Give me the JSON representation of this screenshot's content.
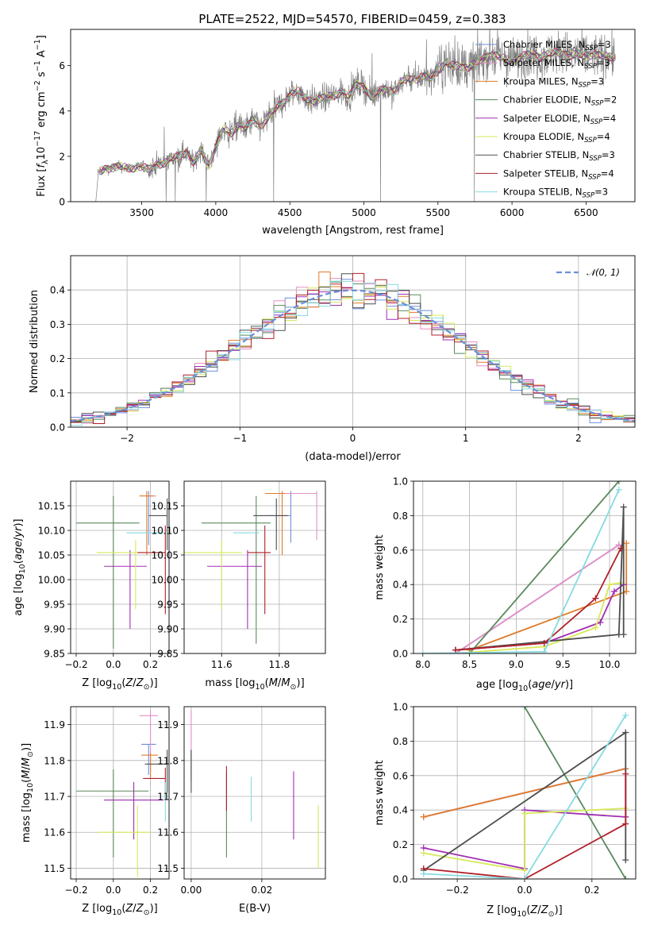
{
  "figure_title": "PLATE=2522, MJD=54570, FIBERID=0459, z=0.383",
  "colors": {
    "Chabrier MILES": "#6f8fdc",
    "Salpeter MILES": "#e58fc6",
    "Kroupa MILES": "#e07b2a",
    "Chabrier ELODIE": "#5a8a5e",
    "Salpeter ELODIE": "#a12db3",
    "Kroupa ELODIE": "#d8e85a",
    "Chabrier STELIB": "#4d4d4d",
    "Salpeter STELIB": "#b0202a",
    "Kroupa STELIB": "#86dbe0",
    "data": "#808080",
    "normal": "#6a8fd6"
  },
  "chart_data": [
    {
      "id": "spectrum",
      "type": "line",
      "xlabel": "wavelength [Angstrom, rest frame]",
      "ylabel_parts": [
        "Flux [",
        "f",
        "λ",
        "10",
        "−17",
        " erg cm",
        "−2",
        " s",
        "−1",
        " A",
        "−1",
        "]"
      ],
      "xlim": [
        3020,
        6830
      ],
      "ylim": [
        0,
        7.6
      ],
      "xticks": [
        3500,
        4000,
        4500,
        5000,
        5500,
        6000,
        6500
      ],
      "yticks": [
        0,
        2,
        4,
        6
      ],
      "grid": false,
      "legend_position": "right",
      "legend": [
        {
          "name": "Chabrier MILES, N",
          "sub": "SSP",
          "suffix": "=3"
        },
        {
          "name": "Salpeter MILES, N",
          "sub": "SSP",
          "suffix": "=3"
        },
        {
          "name": "Kroupa MILES, N",
          "sub": "SSP",
          "suffix": "=3"
        },
        {
          "name": "Chabrier ELODIE, N",
          "sub": "SSP",
          "suffix": "=2"
        },
        {
          "name": "Salpeter ELODIE, N",
          "sub": "SSP",
          "suffix": "=4"
        },
        {
          "name": "Kroupa ELODIE, N",
          "sub": "SSP",
          "suffix": "=4"
        },
        {
          "name": "Chabrier STELIB, N",
          "sub": "SSP",
          "suffix": "=3"
        },
        {
          "name": "Salpeter STELIB, N",
          "sub": "SSP",
          "suffix": "=4"
        },
        {
          "name": "Kroupa STELIB, N",
          "sub": "SSP",
          "suffix": "=3"
        }
      ],
      "continuum": {
        "x": [
          3210,
          3250,
          3300,
          3350,
          3400,
          3450,
          3500,
          3550,
          3600,
          3650,
          3700,
          3750,
          3800,
          3850,
          3900,
          3950,
          4000,
          4050,
          4100,
          4150,
          4200,
          4250,
          4300,
          4350,
          4400,
          4450,
          4500,
          4550,
          4600,
          4650,
          4700,
          4750,
          4800,
          4850,
          4900,
          4950,
          5000,
          5050,
          5100,
          5150,
          5200,
          5250,
          5300,
          5350,
          5400,
          5450,
          5500,
          5550,
          5600,
          5650,
          5700,
          5750,
          5800,
          5850,
          5900,
          5950,
          6000,
          6050,
          6100,
          6150,
          6200,
          6250,
          6300,
          6350,
          6400,
          6450,
          6500,
          6550,
          6600,
          6650
        ],
        "y": [
          1.3,
          1.45,
          1.5,
          1.55,
          1.48,
          1.5,
          1.55,
          1.4,
          1.65,
          1.7,
          1.9,
          2.0,
          2.2,
          1.7,
          2.3,
          1.6,
          2.4,
          3.2,
          3.0,
          3.4,
          3.2,
          3.6,
          3.3,
          3.7,
          4.1,
          4.35,
          4.7,
          4.9,
          4.6,
          4.45,
          4.5,
          4.6,
          4.7,
          4.85,
          4.6,
          5.2,
          5.1,
          4.6,
          4.9,
          5.0,
          4.8,
          5.25,
          5.5,
          5.4,
          5.5,
          5.45,
          5.8,
          6.1,
          6.0,
          6.0,
          5.9,
          6.1,
          6.3,
          6.5,
          6.4,
          6.3,
          6.2,
          6.4,
          6.45,
          6.5,
          6.4,
          6.5,
          6.6,
          6.55,
          6.45,
          6.5,
          6.45,
          6.5,
          6.4,
          6.4
        ]
      }
    },
    {
      "id": "residuals",
      "type": "histogram",
      "xlabel": "(data-model)/error",
      "ylabel": "Normed distribution",
      "xlim": [
        -2.5,
        2.5
      ],
      "ylim": [
        0,
        0.5
      ],
      "xticks": [
        -2,
        -1,
        0,
        1,
        2
      ],
      "yticks": [
        0.0,
        0.1,
        0.2,
        0.3,
        0.4
      ],
      "grid": true,
      "legend_position": "top-right",
      "legend": [
        "𝒩(0, 1)"
      ],
      "bin_width": 0.1
    },
    {
      "id": "age_vs_Z",
      "type": "errorbar",
      "xlabel": "Z [log10(Z/Z⊙)]",
      "ylabel": "age  [log10(age/yr)]",
      "xlim": [
        -0.23,
        0.3
      ],
      "ylim": [
        9.85,
        10.2
      ],
      "xticks": [
        -0.2,
        0.0,
        0.2
      ],
      "yticks": [
        9.85,
        9.9,
        9.95,
        10.0,
        10.05,
        10.1,
        10.15
      ],
      "grid": true,
      "points": [
        {
          "model": "Chabrier MILES",
          "x": 0.19,
          "xlo": 0.19,
          "xhi": 0.19,
          "y": 10.13,
          "ylo": 10.07,
          "yhi": 10.18
        },
        {
          "model": "Salpeter MILES",
          "x": 0.18,
          "xlo": 0.17,
          "xhi": 0.23,
          "y": 10.17,
          "ylo": 10.17,
          "yhi": 10.17
        },
        {
          "model": "Kroupa MILES",
          "x": 0.18,
          "xlo": 0.14,
          "xhi": 0.22,
          "y": 10.17,
          "ylo": 10.05,
          "yhi": 10.18
        },
        {
          "model": "Chabrier ELODIE",
          "x": 0.0,
          "xlo": -0.2,
          "xhi": 0.14,
          "y": 10.115,
          "ylo": 9.86,
          "yhi": 10.17
        },
        {
          "model": "Salpeter ELODIE",
          "x": 0.09,
          "xlo": -0.05,
          "xhi": 0.18,
          "y": 10.027,
          "ylo": 9.9,
          "yhi": 10.06
        },
        {
          "model": "Kroupa ELODIE",
          "x": 0.12,
          "xlo": -0.09,
          "xhi": 0.18,
          "y": 10.055,
          "ylo": 9.94,
          "yhi": 10.08
        },
        {
          "model": "Chabrier STELIB",
          "x": 0.29,
          "xlo": 0.19,
          "xhi": 0.29,
          "y": 10.13,
          "ylo": 10.06,
          "yhi": 10.165
        },
        {
          "model": "Salpeter STELIB",
          "x": 0.28,
          "xlo": 0.13,
          "xhi": 0.28,
          "y": 10.055,
          "ylo": 9.93,
          "yhi": 10.11
        },
        {
          "model": "Kroupa STELIB",
          "x": 0.16,
          "xlo": 0.07,
          "xhi": 0.28,
          "y": 10.095,
          "ylo": 10.095,
          "yhi": 10.095
        }
      ]
    },
    {
      "id": "age_vs_mass",
      "type": "errorbar",
      "xlabel": "mass [log10(M/M⊙)]",
      "ylabel": "",
      "xlim": [
        11.47,
        11.96
      ],
      "ylim": [
        9.85,
        10.2
      ],
      "xticks": [
        11.6,
        11.8
      ],
      "yticks": [
        9.85,
        9.9,
        9.95,
        10.0,
        10.05,
        10.1,
        10.15
      ],
      "grid": true,
      "points": [
        {
          "model": "Chabrier MILES",
          "x": 11.84,
          "xlo": 11.76,
          "xhi": 11.84,
          "y": 10.13,
          "ylo": 10.075,
          "yhi": 10.18
        },
        {
          "model": "Salpeter MILES",
          "x": 11.93,
          "xlo": 11.77,
          "xhi": 11.93,
          "y": 10.175,
          "ylo": 10.08,
          "yhi": 10.18
        },
        {
          "model": "Kroupa MILES",
          "x": 11.81,
          "xlo": 11.75,
          "xhi": 11.82,
          "y": 10.175,
          "ylo": 10.05,
          "yhi": 10.18
        },
        {
          "model": "Chabrier ELODIE",
          "x": 11.72,
          "xlo": 11.53,
          "xhi": 11.77,
          "y": 10.115,
          "ylo": 9.87,
          "yhi": 10.17
        },
        {
          "model": "Salpeter ELODIE",
          "x": 11.69,
          "xlo": 11.55,
          "xhi": 11.74,
          "y": 10.027,
          "ylo": 9.9,
          "yhi": 10.06
        },
        {
          "model": "Kroupa ELODIE",
          "x": 11.6,
          "xlo": 11.47,
          "xhi": 11.67,
          "y": 10.055,
          "ylo": 9.94,
          "yhi": 10.08
        },
        {
          "model": "Chabrier STELIB",
          "x": 11.79,
          "xlo": 11.71,
          "xhi": 11.83,
          "y": 10.13,
          "ylo": 10.06,
          "yhi": 10.165
        },
        {
          "model": "Salpeter STELIB",
          "x": 11.75,
          "xlo": 11.69,
          "xhi": 11.77,
          "y": 10.055,
          "ylo": 9.93,
          "yhi": 10.11
        },
        {
          "model": "Kroupa STELIB",
          "x": 11.66,
          "xlo": 11.64,
          "xhi": 11.73,
          "y": 10.095,
          "ylo": 10.095,
          "yhi": 10.095
        }
      ]
    },
    {
      "id": "weight_vs_age",
      "type": "line",
      "xlabel": "age  [log10(age/yr)]",
      "ylabel": "mass weight",
      "xlim": [
        7.9,
        10.28
      ],
      "ylim": [
        0,
        1.0
      ],
      "xticks": [
        8.0,
        8.5,
        9.0,
        9.5,
        10.0
      ],
      "yticks": [
        0.0,
        0.2,
        0.4,
        0.6,
        0.8,
        1.0
      ],
      "grid": true,
      "series": [
        {
          "model": "Chabrier MILES",
          "x": [
            8.35,
            10.1
          ],
          "y": [
            0.0,
            0.63
          ]
        },
        {
          "model": "Salpeter MILES",
          "x": [
            8.35,
            10.1
          ],
          "y": [
            0.0,
            0.63
          ]
        },
        {
          "model": "Kroupa MILES",
          "x": [
            8.5,
            10.18,
            10.18
          ],
          "y": [
            0.02,
            0.36,
            0.64
          ]
        },
        {
          "model": "Chabrier ELODIE",
          "x": [
            8.5,
            10.1
          ],
          "y": [
            0.0,
            1.0
          ]
        },
        {
          "model": "Salpeter ELODIE",
          "x": [
            8.35,
            9.3,
            9.9,
            10.05,
            10.15
          ],
          "y": [
            0.02,
            0.06,
            0.18,
            0.36,
            0.4
          ]
        },
        {
          "model": "Kroupa ELODIE",
          "x": [
            8.35,
            9.3,
            9.85,
            10.0,
            10.12
          ],
          "y": [
            0.0,
            0.04,
            0.15,
            0.4,
            0.41
          ]
        },
        {
          "model": "Chabrier STELIB",
          "x": [
            8.35,
            10.1,
            10.15,
            10.15
          ],
          "y": [
            0.02,
            0.11,
            0.85,
            0.11
          ]
        },
        {
          "model": "Salpeter STELIB",
          "x": [
            8.35,
            9.3,
            9.85,
            10.12
          ],
          "y": [
            0.02,
            0.06,
            0.32,
            0.61
          ]
        },
        {
          "model": "Kroupa STELIB",
          "x": [
            8.0,
            9.3,
            10.1
          ],
          "y": [
            0.0,
            0.01,
            0.95
          ]
        }
      ]
    },
    {
      "id": "mass_vs_Z",
      "type": "errorbar",
      "xlabel": "Z [log10(Z/Z⊙)]",
      "ylabel": "mass [log10(M/M⊙)]",
      "xlim": [
        -0.23,
        0.3
      ],
      "ylim": [
        11.47,
        11.95
      ],
      "xticks": [
        -0.2,
        0.0,
        0.2
      ],
      "yticks": [
        11.5,
        11.6,
        11.7,
        11.8,
        11.9
      ],
      "grid": true,
      "points": [
        {
          "model": "Chabrier MILES",
          "x": 0.19,
          "xlo": 0.15,
          "xhi": 0.23,
          "y": 11.845,
          "ylo": 11.76,
          "yhi": 11.845
        },
        {
          "model": "Salpeter MILES",
          "x": 0.2,
          "xlo": 0.14,
          "xhi": 0.24,
          "y": 11.925,
          "ylo": 11.77,
          "yhi": 11.94
        },
        {
          "model": "Kroupa MILES",
          "x": 0.2,
          "xlo": 0.15,
          "xhi": 0.24,
          "y": 11.815,
          "ylo": 11.75,
          "yhi": 11.82
        },
        {
          "model": "Chabrier ELODIE",
          "x": 0.0,
          "xlo": -0.2,
          "xhi": 0.19,
          "y": 11.715,
          "ylo": 11.53,
          "yhi": 11.775
        },
        {
          "model": "Salpeter ELODIE",
          "x": 0.11,
          "xlo": -0.05,
          "xhi": 0.27,
          "y": 11.69,
          "ylo": 11.58,
          "yhi": 11.74
        },
        {
          "model": "Kroupa ELODIE",
          "x": 0.13,
          "xlo": -0.08,
          "xhi": 0.2,
          "y": 11.6,
          "ylo": 11.475,
          "yhi": 11.675
        },
        {
          "model": "Chabrier STELIB",
          "x": 0.29,
          "xlo": 0.17,
          "xhi": 0.29,
          "y": 11.79,
          "ylo": 11.71,
          "yhi": 11.83
        },
        {
          "model": "Salpeter STELIB",
          "x": 0.28,
          "xlo": 0.16,
          "xhi": 0.28,
          "y": 11.75,
          "ylo": 11.69,
          "yhi": 11.78
        },
        {
          "model": "Kroupa STELIB",
          "x": 0.28,
          "xlo": 0.27,
          "xhi": 0.29,
          "y": 11.7,
          "ylo": 11.63,
          "yhi": 11.74
        }
      ]
    },
    {
      "id": "mass_vs_ebv",
      "type": "errorbar",
      "xlabel": "E(B-V)",
      "ylabel": "",
      "xlim": [
        -0.002,
        0.038
      ],
      "ylim": [
        11.47,
        11.95
      ],
      "xticks": [
        0.0,
        0.02
      ],
      "yticks": [
        11.5,
        11.6,
        11.7,
        11.8,
        11.9
      ],
      "grid": true,
      "points": [
        {
          "model": "Chabrier MILES",
          "x": 0.0,
          "xlo": 0.0,
          "xhi": 0.0,
          "y": 11.8,
          "ylo": 11.76,
          "yhi": 11.83
        },
        {
          "model": "Salpeter MILES",
          "x": 0.0,
          "xlo": 0.0,
          "xhi": 0.0,
          "y": 11.88,
          "ylo": 11.82,
          "yhi": 11.94
        },
        {
          "model": "Kroupa MILES",
          "x": 0.0,
          "xlo": 0.0,
          "xhi": 0.0,
          "y": 11.78,
          "ylo": 11.74,
          "yhi": 11.82
        },
        {
          "model": "Chabrier ELODIE",
          "x": 0.01,
          "xlo": 0.01,
          "xhi": 0.01,
          "y": 11.65,
          "ylo": 11.53,
          "yhi": 11.77
        },
        {
          "model": "Salpeter ELODIE",
          "x": 0.029,
          "xlo": 0.029,
          "xhi": 0.029,
          "y": 11.68,
          "ylo": 11.58,
          "yhi": 11.77
        },
        {
          "model": "Kroupa ELODIE",
          "x": 0.036,
          "xlo": 0.036,
          "xhi": 0.036,
          "y": 11.59,
          "ylo": 11.5,
          "yhi": 11.675
        },
        {
          "model": "Chabrier STELIB",
          "x": 0.0,
          "xlo": 0.0,
          "xhi": 0.0,
          "y": 11.77,
          "ylo": 11.71,
          "yhi": 11.83
        },
        {
          "model": "Salpeter STELIB",
          "x": 0.01,
          "xlo": 0.01,
          "xhi": 0.01,
          "y": 11.72,
          "ylo": 11.66,
          "yhi": 11.785
        },
        {
          "model": "Kroupa STELIB",
          "x": 0.017,
          "xlo": 0.017,
          "xhi": 0.017,
          "y": 11.7,
          "ylo": 11.63,
          "yhi": 11.755
        }
      ]
    },
    {
      "id": "weight_vs_Z",
      "type": "line",
      "xlabel": "Z [log10(Z/Z⊙)]",
      "ylabel": "mass weight",
      "xlim": [
        -0.33,
        0.33
      ],
      "ylim": [
        0,
        1.0
      ],
      "xticks": [
        -0.2,
        0.0,
        0.2
      ],
      "yticks": [
        0.0,
        0.2,
        0.4,
        0.6,
        0.8,
        1.0
      ],
      "grid": true,
      "series": [
        {
          "model": "Chabrier MILES",
          "x": [
            -0.3,
            0.3,
            0.3
          ],
          "y": [
            0.36,
            0.64,
            0.36
          ]
        },
        {
          "model": "Salpeter MILES",
          "x": [
            -0.3,
            0.3
          ],
          "y": [
            0.36,
            0.64
          ]
        },
        {
          "model": "Kroupa MILES",
          "x": [
            -0.3,
            0.3
          ],
          "y": [
            0.36,
            0.64
          ]
        },
        {
          "model": "Chabrier ELODIE",
          "x": [
            0.0,
            0.3
          ],
          "y": [
            1.0,
            0.0
          ]
        },
        {
          "model": "Salpeter ELODIE",
          "x": [
            -0.3,
            0.0,
            0.0,
            0.3
          ],
          "y": [
            0.18,
            0.06,
            0.4,
            0.36
          ]
        },
        {
          "model": "Kroupa ELODIE",
          "x": [
            -0.3,
            0.0,
            0.0,
            0.3
          ],
          "y": [
            0.15,
            0.05,
            0.38,
            0.41
          ]
        },
        {
          "model": "Chabrier STELIB",
          "x": [
            -0.3,
            0.3,
            0.3
          ],
          "y": [
            0.05,
            0.85,
            0.11
          ]
        },
        {
          "model": "Salpeter STELIB",
          "x": [
            -0.3,
            0.0,
            0.3,
            0.3
          ],
          "y": [
            0.06,
            0.0,
            0.32,
            0.61
          ]
        },
        {
          "model": "Kroupa STELIB",
          "x": [
            -0.3,
            0.0,
            0.3
          ],
          "y": [
            0.03,
            0.0,
            0.95
          ]
        }
      ]
    }
  ]
}
